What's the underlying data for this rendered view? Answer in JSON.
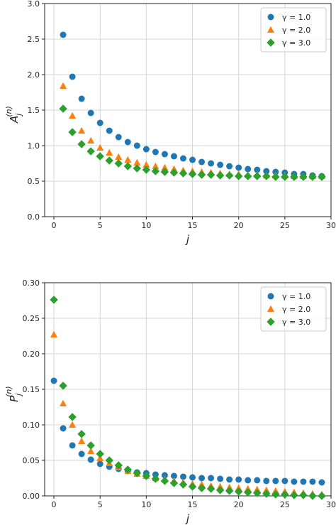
{
  "chart_data": [
    {
      "type": "scatter",
      "xlabel": "j",
      "ylabel": "A_j^(n)",
      "ylabel_base": "A",
      "ylabel_sub": "j",
      "ylabel_sup": "(n)",
      "xlim": [
        -1,
        30
      ],
      "ylim": [
        0,
        3.0
      ],
      "xticks": [
        "0",
        "5",
        "10",
        "15",
        "20",
        "25",
        "30"
      ],
      "xtick_values": [
        0,
        5,
        10,
        15,
        20,
        25,
        30
      ],
      "yticks": [
        "0.0",
        "0.5",
        "1.0",
        "1.5",
        "2.0",
        "2.5",
        "3.0"
      ],
      "ytick_values": [
        0,
        0.5,
        1.0,
        1.5,
        2.0,
        2.5,
        3.0
      ],
      "grid": true,
      "legend_position": "top-right",
      "series": [
        {
          "name": "γ = 1.0",
          "marker": "circle",
          "color": "#1f77b4",
          "x": [
            1,
            2,
            3,
            4,
            5,
            6,
            7,
            8,
            9,
            10,
            11,
            12,
            13,
            14,
            15,
            16,
            17,
            18,
            19,
            20,
            21,
            22,
            23,
            24,
            25,
            26,
            27,
            28,
            29
          ],
          "y": [
            2.56,
            1.97,
            1.66,
            1.46,
            1.32,
            1.21,
            1.12,
            1.05,
            1.0,
            0.95,
            0.91,
            0.88,
            0.85,
            0.82,
            0.8,
            0.77,
            0.75,
            0.73,
            0.71,
            0.69,
            0.67,
            0.66,
            0.64,
            0.63,
            0.62,
            0.6,
            0.6,
            0.58,
            0.57
          ]
        },
        {
          "name": "γ = 2.0",
          "marker": "triangle",
          "color": "#ff7f0e",
          "x": [
            1,
            2,
            3,
            4,
            5,
            6,
            7,
            8,
            9,
            10,
            11,
            12,
            13,
            14,
            15,
            16,
            17,
            18,
            19,
            20,
            21,
            22,
            23,
            24,
            25,
            26,
            27,
            28,
            29
          ],
          "y": [
            1.84,
            1.42,
            1.21,
            1.07,
            0.97,
            0.9,
            0.84,
            0.8,
            0.76,
            0.73,
            0.71,
            0.69,
            0.67,
            0.65,
            0.64,
            0.63,
            0.62,
            0.61,
            0.6,
            0.6,
            0.59,
            0.59,
            0.58,
            0.58,
            0.58,
            0.57,
            0.57,
            0.57,
            0.57
          ]
        },
        {
          "name": "γ = 3.0",
          "marker": "diamond",
          "color": "#2ca02c",
          "x": [
            1,
            2,
            3,
            4,
            5,
            6,
            7,
            8,
            9,
            10,
            11,
            12,
            13,
            14,
            15,
            16,
            17,
            18,
            19,
            20,
            21,
            22,
            23,
            24,
            25,
            26,
            27,
            28,
            29
          ],
          "y": [
            1.52,
            1.19,
            1.02,
            0.92,
            0.85,
            0.79,
            0.75,
            0.71,
            0.68,
            0.66,
            0.64,
            0.63,
            0.62,
            0.61,
            0.6,
            0.59,
            0.59,
            0.58,
            0.58,
            0.57,
            0.57,
            0.57,
            0.57,
            0.56,
            0.56,
            0.56,
            0.56,
            0.56,
            0.56
          ]
        }
      ]
    },
    {
      "type": "scatter",
      "xlabel": "j",
      "ylabel": "P_j^(n)",
      "ylabel_base": "P",
      "ylabel_sub": "j",
      "ylabel_sup": "(n)",
      "xlim": [
        -1,
        30
      ],
      "ylim": [
        0,
        0.3
      ],
      "xticks": [
        "0",
        "5",
        "10",
        "15",
        "20",
        "25",
        "30"
      ],
      "xtick_values": [
        0,
        5,
        10,
        15,
        20,
        25,
        30
      ],
      "yticks": [
        "0.00",
        "0.05",
        "0.10",
        "0.15",
        "0.20",
        "0.25",
        "0.30"
      ],
      "ytick_values": [
        0,
        0.05,
        0.1,
        0.15,
        0.2,
        0.25,
        0.3
      ],
      "grid": true,
      "legend_position": "top-right",
      "series": [
        {
          "name": "γ = 1.0",
          "marker": "circle",
          "color": "#1f77b4",
          "x": [
            0,
            1,
            2,
            3,
            4,
            5,
            6,
            7,
            8,
            9,
            10,
            11,
            12,
            13,
            14,
            15,
            16,
            17,
            18,
            19,
            20,
            21,
            22,
            23,
            24,
            25,
            26,
            27,
            28,
            29
          ],
          "y": [
            0.162,
            0.095,
            0.071,
            0.059,
            0.051,
            0.045,
            0.041,
            0.038,
            0.035,
            0.033,
            0.032,
            0.03,
            0.029,
            0.028,
            0.027,
            0.026,
            0.025,
            0.025,
            0.024,
            0.023,
            0.023,
            0.022,
            0.022,
            0.021,
            0.021,
            0.021,
            0.02,
            0.02,
            0.02,
            0.019
          ]
        },
        {
          "name": "γ = 2.0",
          "marker": "triangle",
          "color": "#ff7f0e",
          "x": [
            0,
            1,
            2,
            3,
            4,
            5,
            6,
            7,
            8,
            9,
            10,
            11,
            12,
            13,
            14,
            15,
            16,
            17,
            18,
            19,
            20,
            21,
            22,
            23,
            24,
            25,
            26,
            27,
            28,
            29
          ],
          "y": [
            0.227,
            0.13,
            0.1,
            0.077,
            0.063,
            0.053,
            0.046,
            0.04,
            0.035,
            0.031,
            0.028,
            0.025,
            0.023,
            0.021,
            0.019,
            0.017,
            0.016,
            0.014,
            0.013,
            0.012,
            0.011,
            0.01,
            0.009,
            0.008,
            0.007,
            0.006,
            0.005,
            0.004,
            0.003,
            0.002
          ]
        },
        {
          "name": "γ = 3.0",
          "marker": "diamond",
          "color": "#2ca02c",
          "x": [
            0,
            1,
            2,
            3,
            4,
            5,
            6,
            7,
            8,
            9,
            10,
            11,
            12,
            13,
            14,
            15,
            16,
            17,
            18,
            19,
            20,
            21,
            22,
            23,
            24,
            25,
            26,
            27,
            28,
            29
          ],
          "y": [
            0.276,
            0.155,
            0.111,
            0.087,
            0.071,
            0.059,
            0.05,
            0.043,
            0.037,
            0.032,
            0.028,
            0.024,
            0.021,
            0.018,
            0.016,
            0.013,
            0.011,
            0.01,
            0.008,
            0.007,
            0.006,
            0.005,
            0.004,
            0.003,
            0.002,
            0.002,
            0.001,
            0.001,
            0.0,
            0.0
          ]
        }
      ]
    }
  ]
}
